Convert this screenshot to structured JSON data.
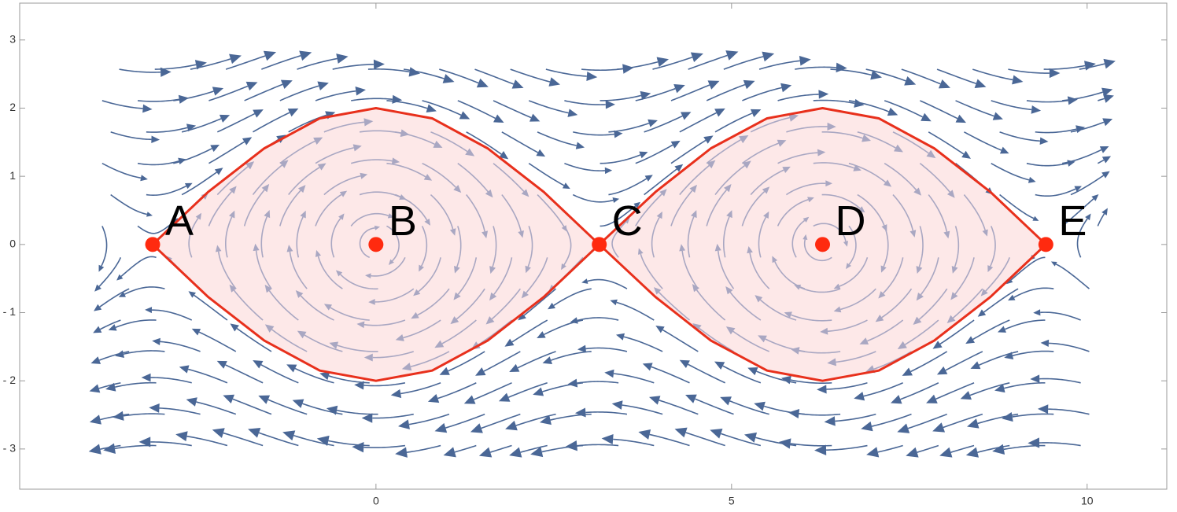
{
  "chart_data": {
    "type": "scatter",
    "xlim": [
      -5.01,
      11.12
    ],
    "ylim": [
      -3.59,
      3.54
    ],
    "xticks": [
      0,
      5,
      10
    ],
    "yticks": [
      {
        "value": -3,
        "label": "- 3"
      },
      {
        "value": -2,
        "label": "- 2"
      },
      {
        "value": -1,
        "label": "- 1"
      },
      0,
      1,
      2,
      3
    ],
    "points": {
      "x": [
        -3.14,
        0,
        3.14,
        6.28,
        9.42
      ],
      "y": [
        0,
        0,
        0,
        0,
        0
      ],
      "labels": [
        "A",
        "B",
        "C",
        "D",
        "E"
      ],
      "color": "#ff2a0f"
    },
    "curves": [
      {
        "x": [
          -3.14,
          -2.36,
          -1.57,
          -0.79,
          0,
          0.79,
          1.57,
          2.36,
          3.14,
          3.93,
          4.71,
          5.5,
          6.28,
          7.07,
          7.85,
          8.64,
          9.42
        ],
        "values": [
          0,
          0.77,
          1.41,
          1.85,
          2,
          1.85,
          1.41,
          0.77,
          0,
          0.77,
          1.41,
          1.85,
          2,
          1.85,
          1.41,
          0.77,
          0
        ]
      },
      {
        "x": [
          -3.14,
          -2.36,
          -1.57,
          -0.79,
          0,
          0.79,
          1.57,
          2.36,
          3.14,
          3.93,
          4.71,
          5.5,
          6.28,
          7.07,
          7.85,
          8.64,
          9.42
        ],
        "values": [
          0,
          -0.77,
          -1.41,
          -1.85,
          -2,
          -1.85,
          -1.41,
          -0.77,
          0,
          -0.77,
          -1.41,
          -1.85,
          -2,
          -1.85,
          -1.41,
          -0.77,
          0
        ]
      }
    ],
    "curve_color": "#e8301c",
    "fill_color": "#fde8e8",
    "stream_color": "#4a6796",
    "inner_stream_color": "#a9a7c2"
  }
}
